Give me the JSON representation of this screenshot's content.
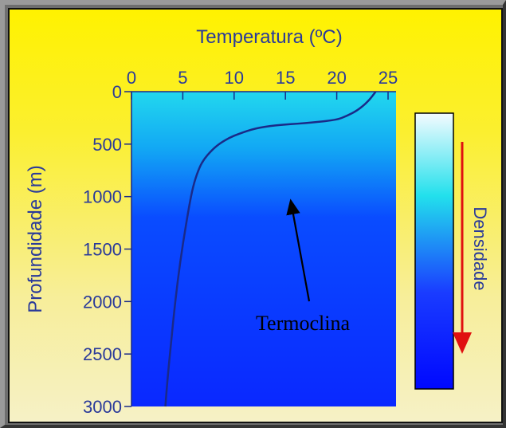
{
  "chart_data": {
    "type": "line",
    "xlabel": "Temperatura (ºC)",
    "ylabel": "Profundidade (m)",
    "x_ticks": [
      "0",
      "5",
      "10",
      "15",
      "20",
      "25"
    ],
    "y_ticks": [
      "0",
      "500",
      "1000",
      "1500",
      "2000",
      "2500",
      "3000"
    ],
    "xlim": [
      0,
      25
    ],
    "ylim": [
      0,
      3000
    ],
    "y_inverted": true,
    "x_axis_position": "top",
    "series": [
      {
        "x": [
          23.8,
          23.0,
          22.0,
          21.0,
          20.0,
          17.0,
          14.0,
          12.0,
          10.5,
          9.5,
          8.5,
          7.8,
          7.0,
          6.5,
          6.0,
          5.6,
          5.0,
          4.5,
          4.1,
          3.8,
          3.5,
          3.3
        ],
        "y": [
          0,
          100,
          180,
          230,
          270,
          300,
          320,
          350,
          400,
          440,
          500,
          560,
          650,
          750,
          900,
          1100,
          1450,
          1800,
          2150,
          2450,
          2750,
          3000
        ]
      }
    ],
    "annotations": [
      {
        "text": "Termoclina",
        "arrow_to": {
          "x": 15,
          "y": 1000
        }
      }
    ],
    "density_bar": {
      "label": "Densidade",
      "colors": [
        "#f4fbff",
        "#22e0ec",
        "#1a3cff",
        "#0008ff"
      ]
    },
    "colors": {
      "line": "#1a2a88",
      "arrow": "#e01010",
      "water_top": "#22d8ee",
      "water_bottom": "#0a28ff"
    }
  }
}
